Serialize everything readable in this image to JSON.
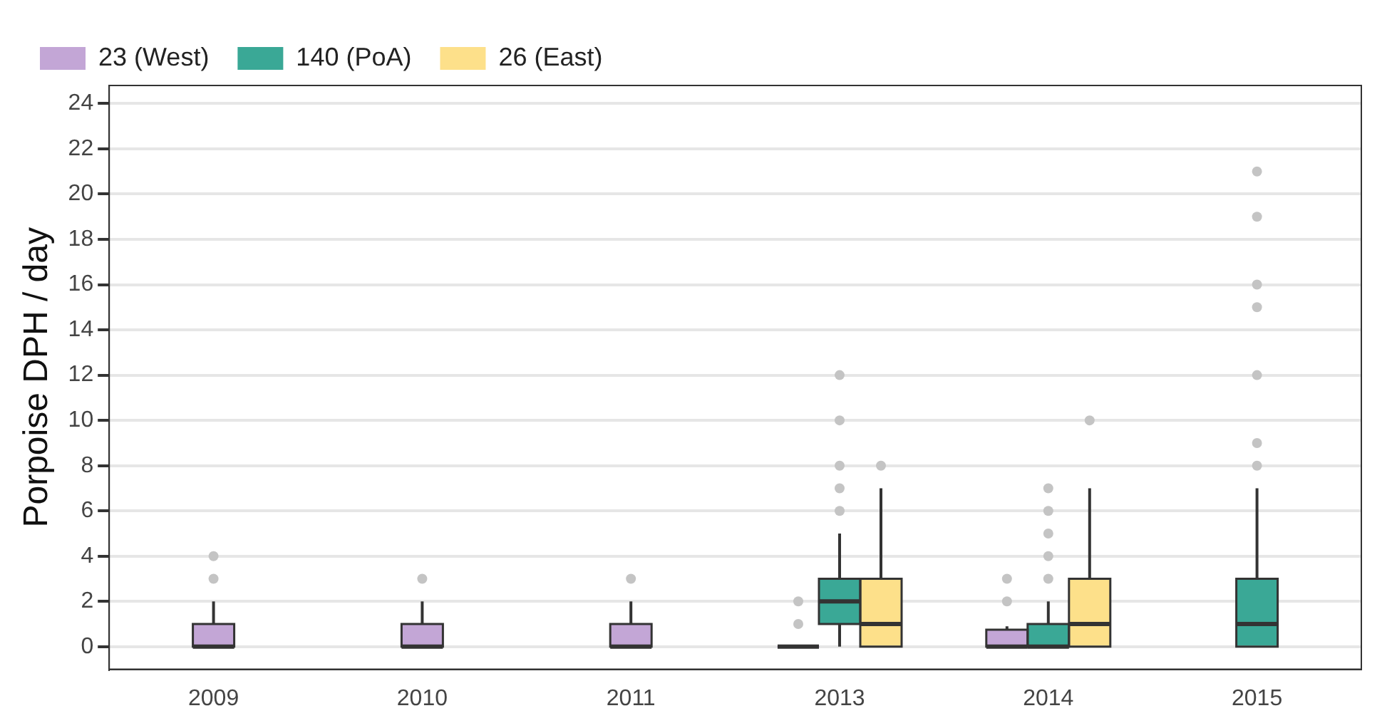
{
  "chart_data": {
    "type": "box",
    "ylabel": "Porpoise DPH / day",
    "categories": [
      "2009",
      "2010",
      "2011",
      "2013",
      "2014",
      "2015"
    ],
    "ylim": [
      -1,
      24.8
    ],
    "yticks": [
      0,
      2,
      4,
      6,
      8,
      10,
      12,
      14,
      16,
      18,
      20,
      22,
      24
    ],
    "grid": "y",
    "legend": "top left",
    "series": [
      {
        "name": "23 (West)",
        "color": "#c3a6d6",
        "boxes": [
          {
            "low": 0,
            "q1": 0,
            "median": 0,
            "q3": 1,
            "high": 2,
            "outliers": [
              3,
              4
            ]
          },
          {
            "low": 0,
            "q1": 0,
            "median": 0,
            "q3": 1,
            "high": 2,
            "outliers": [
              3
            ]
          },
          {
            "low": 0,
            "q1": 0,
            "median": 0,
            "q3": 1,
            "high": 2,
            "outliers": [
              3
            ]
          },
          {
            "low": 0,
            "q1": 0,
            "median": 0,
            "q3": 0,
            "high": 0,
            "outliers": [
              1,
              2
            ]
          },
          {
            "low": 0,
            "q1": 0,
            "median": 0,
            "q3": 0.75,
            "high": 0.9,
            "outliers": [
              2,
              3
            ]
          },
          null
        ]
      },
      {
        "name": "140 (PoA)",
        "color": "#3aa896",
        "boxes": [
          null,
          null,
          null,
          {
            "low": 0,
            "q1": 1,
            "median": 2,
            "q3": 3,
            "high": 5,
            "outliers": [
              6,
              7,
              8,
              10,
              12
            ]
          },
          {
            "low": 0,
            "q1": 0,
            "median": 0,
            "q3": 1,
            "high": 2,
            "outliers": [
              3,
              4,
              5,
              6,
              7
            ]
          },
          {
            "low": 0,
            "q1": 0,
            "median": 1,
            "q3": 3,
            "high": 7,
            "outliers": [
              8,
              9,
              12,
              15,
              16,
              19,
              21
            ]
          }
        ]
      },
      {
        "name": "26 (East)",
        "color": "#fde08a",
        "boxes": [
          null,
          null,
          null,
          {
            "low": 0,
            "q1": 0,
            "median": 1,
            "q3": 3,
            "high": 7,
            "outliers": [
              8
            ]
          },
          {
            "low": 0,
            "q1": 0,
            "median": 1,
            "q3": 3,
            "high": 7,
            "outliers": [
              10
            ]
          },
          null
        ]
      }
    ]
  }
}
